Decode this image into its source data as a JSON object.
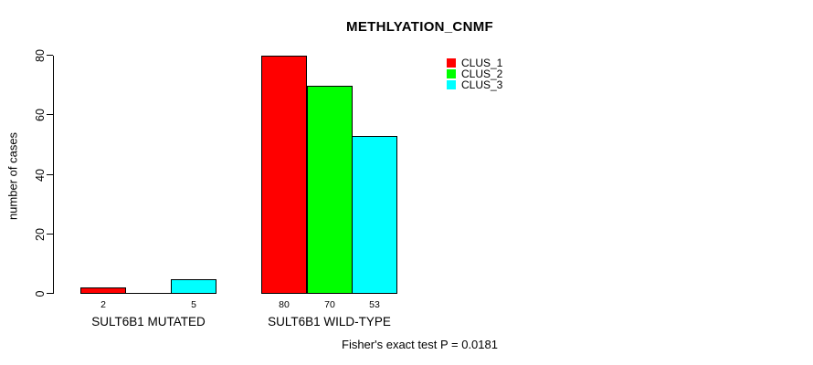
{
  "title": "METHLYATION_CNMF",
  "y_axis_label": "number of cases",
  "footer": "Fisher's exact test P = 0.0181",
  "legend": {
    "items": [
      {
        "label": "CLUS_1",
        "color": "#ff0000"
      },
      {
        "label": "CLUS_2",
        "color": "#00ff00"
      },
      {
        "label": "CLUS_3",
        "color": "#00ffff"
      }
    ]
  },
  "chart_data": {
    "type": "bar",
    "title": "METHLYATION_CNMF",
    "xlabel": "",
    "ylabel": "number of cases",
    "categories": [
      "SULT6B1 MUTATED",
      "SULT6B1 WILD-TYPE"
    ],
    "series": [
      {
        "name": "CLUS_1",
        "color": "#ff0000",
        "values": [
          2,
          80
        ]
      },
      {
        "name": "CLUS_2",
        "color": "#00ff00",
        "values": [
          0,
          70
        ]
      },
      {
        "name": "CLUS_3",
        "color": "#00ffff",
        "values": [
          5,
          53
        ]
      }
    ],
    "bar_labels": [
      [
        "2",
        "",
        "5"
      ],
      [
        "80",
        "70",
        "53"
      ]
    ],
    "yticks": [
      0,
      20,
      40,
      60,
      80
    ],
    "ylim": [
      0,
      80
    ],
    "grid": false,
    "legend_position": "top-right",
    "annotation": "Fisher's exact test P = 0.0181"
  }
}
